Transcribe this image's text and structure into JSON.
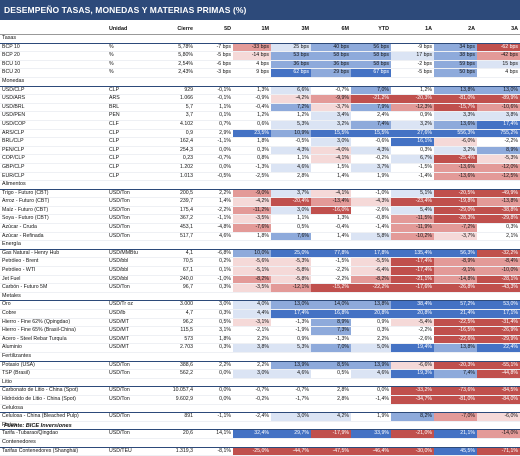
{
  "title": "DESEMPEÑO TASAS, MONEDAS Y MATERIAS PRIMAS (%)",
  "headers": [
    "",
    "Unidad",
    "Cierre",
    "5D",
    "1M",
    "3M",
    "6M",
    "YTD",
    "1A",
    "2A",
    "3A"
  ],
  "sections": [
    {
      "name": "Tasas",
      "rows": [
        {
          "name": "BCP 10",
          "unit": "%",
          "values": [
            "5,78%",
            "-7 bps",
            "-33 bps",
            "25 bps",
            "40 bps",
            "56 bps",
            "-9 bps",
            "34 bps",
            "-62 bps"
          ]
        },
        {
          "name": "BCP 20",
          "unit": "%",
          "values": [
            "5,80%",
            "-5 bps",
            "-14 bps",
            "53 bps",
            "58 bps",
            "58 bps",
            "17 bps",
            "38 bps",
            "-42 bps"
          ]
        },
        {
          "name": "BCU 10",
          "unit": "%",
          "values": [
            "2,54%",
            "-6 bps",
            "4 bps",
            "36 bps",
            "36 bps",
            "58 bps",
            "-2 bps",
            "59 bps",
            "15 bps"
          ]
        },
        {
          "name": "BCU 20",
          "unit": "%",
          "values": [
            "2,43%",
            "-3 bps",
            "9 bps",
            "62 bps",
            "29 bps",
            "67 bps",
            "-5 bps",
            "50 bps",
            "4 bps"
          ]
        }
      ]
    },
    {
      "name": "Monedas",
      "rows": [
        {
          "name": "USD/CLP",
          "unit": "CLP",
          "values": [
            "929",
            "-0,1%",
            "1,3%",
            "6,6%",
            "-0,7%",
            "7,0%",
            "1,2%",
            "13,8%",
            "13,0%"
          ]
        },
        {
          "name": "USD/ARS",
          "unit": "ARS",
          "values": [
            "1.066",
            "-0,1%",
            "-0,9%",
            "-4,2%",
            "-9,9%",
            "-21,2%",
            "-20,3%",
            "-81,0%",
            "-89,9%"
          ]
        },
        {
          "name": "USD/BRL",
          "unit": "BRL",
          "values": [
            "5,7",
            "1,1%",
            "-0,4%",
            "7,2%",
            "-3,7%",
            "7,9%",
            "-12,3%",
            "-15,7%",
            "-10,6%"
          ]
        },
        {
          "name": "USD/PEN",
          "unit": "PEN",
          "values": [
            "3,7",
            "0,1%",
            "1,2%",
            "1,2%",
            "3,4%",
            "2,4%",
            "0,9%",
            "3,3%",
            "3,8%"
          ]
        },
        {
          "name": "USD/COP",
          "unit": "CLF",
          "values": [
            "4.102",
            "0,7%",
            "0,6%",
            "5,3%",
            "3,2%",
            "7,4%",
            "3,2%",
            "13,6%",
            "17,4%"
          ]
        },
        {
          "name": "ARS/CLP",
          "unit": "CLP",
          "values": [
            "0,9",
            "2,9%",
            "23,5%",
            "10,9%",
            "15,5%",
            "15,5%",
            "27,6%",
            "556,3%",
            "755,2%"
          ]
        },
        {
          "name": "BRL/CLP",
          "unit": "CLP",
          "values": [
            "162,4",
            "-1,1%",
            "1,8%",
            "-0,5%",
            "3,0%",
            "-0,6%",
            "16,1%",
            "-6,0%",
            "-2,2%"
          ]
        },
        {
          "name": "PEN/CLP",
          "unit": "CLP",
          "values": [
            "254,3",
            "0,0%",
            "0,3%",
            "4,3%",
            "-4,0%",
            "4,3%",
            "0,3%",
            "3,2%",
            "8,9%"
          ]
        },
        {
          "name": "COP/CLP",
          "unit": "CLP",
          "values": [
            "0,23",
            "-0,7%",
            "0,8%",
            "1,1%",
            "-4,1%",
            "-0,2%",
            "6,7%",
            "-25,4%",
            "-5,3%"
          ]
        },
        {
          "name": "GBP/CLP",
          "unit": "CLP",
          "values": [
            "1.202",
            "0,0%",
            "-1,3%",
            "4,6%",
            "1,5%",
            "3,7%",
            "-1,5%",
            "-13,6%",
            "-12,0%"
          ]
        },
        {
          "name": "EUR/CLP",
          "unit": "CLP",
          "values": [
            "1.013",
            "-0,5%",
            "-2,5%",
            "2,8%",
            "1,4%",
            "1,9%",
            "-1,4%",
            "-13,6%",
            "-12,5%"
          ]
        }
      ]
    },
    {
      "name": "Alimentos",
      "rows": [
        {
          "name": "Trigo - Futuro (CBT)",
          "unit": "USD/Ton",
          "values": [
            "200,5",
            "2,2%",
            "-9,0%",
            "3,7%",
            "-4,1%",
            "-1,0%",
            "5,1%",
            "-20,5%",
            "-49,9%"
          ]
        },
        {
          "name": "Arroz - Futuro (CBT)",
          "unit": "USD/Ton",
          "values": [
            "239,7",
            "1,4%",
            "-4,2%",
            "-20,4%",
            "-13,4%",
            "-4,3%",
            "-23,4%",
            "-19,8%",
            "-13,8%"
          ]
        },
        {
          "name": "Maíz - Futuro (CBT)",
          "unit": "USD/Ton",
          "values": [
            "175,4",
            "-2,2%",
            "-11,2%",
            "3,0%",
            "-16,0%",
            "-2,6%",
            "5,4%",
            "-29,0%",
            "-38,8%"
          ]
        },
        {
          "name": "Soya - Futuro (CBT)",
          "unit": "USD/Ton",
          "values": [
            "367,2",
            "-1,1%",
            "-3,5%",
            "1,1%",
            "1,3%",
            "-0,8%",
            "-11,5%",
            "-28,3%",
            "-29,8%"
          ]
        },
        {
          "name": "Azúcar - Cruda",
          "unit": "USD/Ton",
          "values": [
            "453,1",
            "-4,8%",
            "-7,6%",
            "0,5%",
            "-0,4%",
            "-1,4%",
            "-11,9%",
            "-7,2%",
            "0,3%"
          ]
        },
        {
          "name": "Azúcar - Refinada",
          "unit": "USD/Ton",
          "values": [
            "517,7",
            "4,6%",
            "1,8%",
            "7,6%",
            "1,4%",
            "5,8%",
            "-10,2%",
            "-3,7%",
            "2,1%"
          ]
        }
      ]
    },
    {
      "name": "Energía",
      "rows": [
        {
          "name": "Gas Natural - Henry Hub",
          "unit": "USD/MMBtu",
          "values": [
            "4,1",
            "-6,8%",
            "10,0%",
            "25,0%",
            "77,8%",
            "17,8%",
            "135,4%",
            "56,3%",
            "-32,2%"
          ]
        },
        {
          "name": "Petróleo - Brent",
          "unit": "USD/bbl",
          "values": [
            "70,5",
            "0,2%",
            "-5,6%",
            "-5,3%",
            "-1,5%",
            "-5,5%",
            "-17,4%",
            "-8,9%",
            "-8,4%"
          ]
        },
        {
          "name": "Petróleo - WTI",
          "unit": "USD/bbl",
          "values": [
            "67,1",
            "0,1%",
            "-5,1%",
            "-5,8%",
            "-2,2%",
            "-6,4%",
            "-17,4%",
            "-9,1%",
            "-10,0%"
          ]
        },
        {
          "name": "Jet Fuel",
          "unit": "USD/bbl",
          "values": [
            "240,0",
            "-1,0%",
            "-8,2%",
            "-5,8%",
            "-2,2%",
            "-8,2%",
            "-21,1%",
            "-14,8%",
            "-28,1%"
          ]
        },
        {
          "name": "Carbón - Futuro 5M",
          "unit": "USD/Ton",
          "values": [
            "96,7",
            "0,3%",
            "-3,5%",
            "-12,1%",
            "-15,2%",
            "-22,2%",
            "-17,6%",
            "-26,8%",
            "-43,3%"
          ]
        }
      ]
    },
    {
      "name": "Metales",
      "rows": [
        {
          "name": "Oro",
          "unit": "USD/Tr oz",
          "values": [
            "3.000",
            "3,0%",
            "4,0%",
            "13,0%",
            "14,0%",
            "13,8%",
            "38,4%",
            "57,2%",
            "53,0%"
          ]
        },
        {
          "name": "Cobre",
          "unit": "USD/lb",
          "values": [
            "4,7",
            "0,3%",
            "4,4%",
            "17,4%",
            "16,8%",
            "20,8%",
            "20,8%",
            "21,4%",
            "17,1%"
          ]
        },
        {
          "name": "Hierro - Fine 62% (Qpingdao)",
          "unit": "USD/MT",
          "values": [
            "96,2",
            "0,5%",
            "-3,1%",
            "-1,3%",
            "8,9%",
            "0,9%",
            "-5,4%",
            "-22,5%",
            "-31,4%"
          ]
        },
        {
          "name": "Hierro - Fine 65% (Brasil-China)",
          "unit": "USD/MT",
          "values": [
            "115,5",
            "3,1%",
            "-2,1%",
            "-1,9%",
            "7,3%",
            "0,3%",
            "-2,2%",
            "-16,5%",
            "-26,9%"
          ]
        },
        {
          "name": "Acero - Steel Rebar Turquía",
          "unit": "USD/MT",
          "values": [
            "573",
            "1,8%",
            "2,2%",
            "0,9%",
            "-1,3%",
            "2,2%",
            "-2,6%",
            "-22,6%",
            "-29,9%"
          ]
        },
        {
          "name": "Aluminio",
          "unit": "USD/MT",
          "values": [
            "2.703",
            "0,3%",
            "3,8%",
            "5,3%",
            "7,0%",
            "5,0%",
            "19,4%",
            "13,8%",
            "22,4%"
          ]
        }
      ]
    },
    {
      "name": "Fertilizantes",
      "rows": [
        {
          "name": "Potasio (USA)",
          "unit": "USD/Ton",
          "values": [
            "388,6",
            "2,2%",
            "2,2%",
            "13,9%",
            "8,5%",
            "13,9%",
            "-6,6%",
            "-20,3%",
            "-55,1%"
          ]
        },
        {
          "name": "TSP (Brasil)",
          "unit": "USD/Ton",
          "values": [
            "562,2",
            "0,0%",
            "3,0%",
            "4,6%",
            "0,5%",
            "4,6%",
            "19,3%",
            "7,4%",
            "-44,8%"
          ]
        }
      ]
    },
    {
      "name": "Litio",
      "rows": [
        {
          "name": "Carbonato de Litio - China (Spot)",
          "unit": "USD/Ton",
          "values": [
            "10.057,4",
            "0,0%",
            "-0,7%",
            "-0,7%",
            "2,8%",
            "0,0%",
            "-33,2%",
            "-73,6%",
            "-84,5%"
          ]
        },
        {
          "name": "Hidróxido de Litio - China (Spot)",
          "unit": "USD/Ton",
          "values": [
            "9.602,9",
            "0,0%",
            "-0,2%",
            "-1,7%",
            "2,8%",
            "-1,4%",
            "-34,7%",
            "-81,0%",
            "-84,0%"
          ]
        }
      ]
    },
    {
      "name": "Celulosa",
      "rows": [
        {
          "name": "Celulosa - China (Bleached Pulp)",
          "unit": "USD/Ton",
          "values": [
            "891",
            "-1,1%",
            "-2,4%",
            "3,0%",
            "4,2%",
            "1,9%",
            "8,2%",
            "-7,0%",
            "-6,0%"
          ]
        }
      ]
    },
    {
      "name": "Fletes",
      "rows": [
        {
          "name": "Tarifa -Tubarao/Qingdao",
          "unit": "USD/Ton",
          "values": [
            "20,6",
            "14,1%",
            "32,4%",
            "29,7%",
            "-17,9%",
            "33,9%",
            "-21,0%",
            "21,1%",
            "-14,0%"
          ]
        }
      ]
    },
    {
      "name": "Contenedores",
      "rows": [
        {
          "name": "Tarifas Contenedores (Shanghái)",
          "unit": "USD/TEU",
          "values": [
            "1.319,3",
            "-8,1%",
            "-25,0%",
            "-44,7%",
            "-47,5%",
            "-46,4%",
            "-30,0%",
            "45,5%",
            "-71,1%"
          ]
        }
      ]
    }
  ],
  "footer": "Fuente: BICE Inversiones",
  "colors": {
    "header_bg": "#2d4a7a",
    "strong_pos": "#4472c4",
    "mid_pos": "#8eaadb",
    "light_pos": "#dbe4f4",
    "strong_neg": "#c0504d",
    "mid_neg": "#e39a98",
    "light_neg": "#f5d9d8"
  }
}
